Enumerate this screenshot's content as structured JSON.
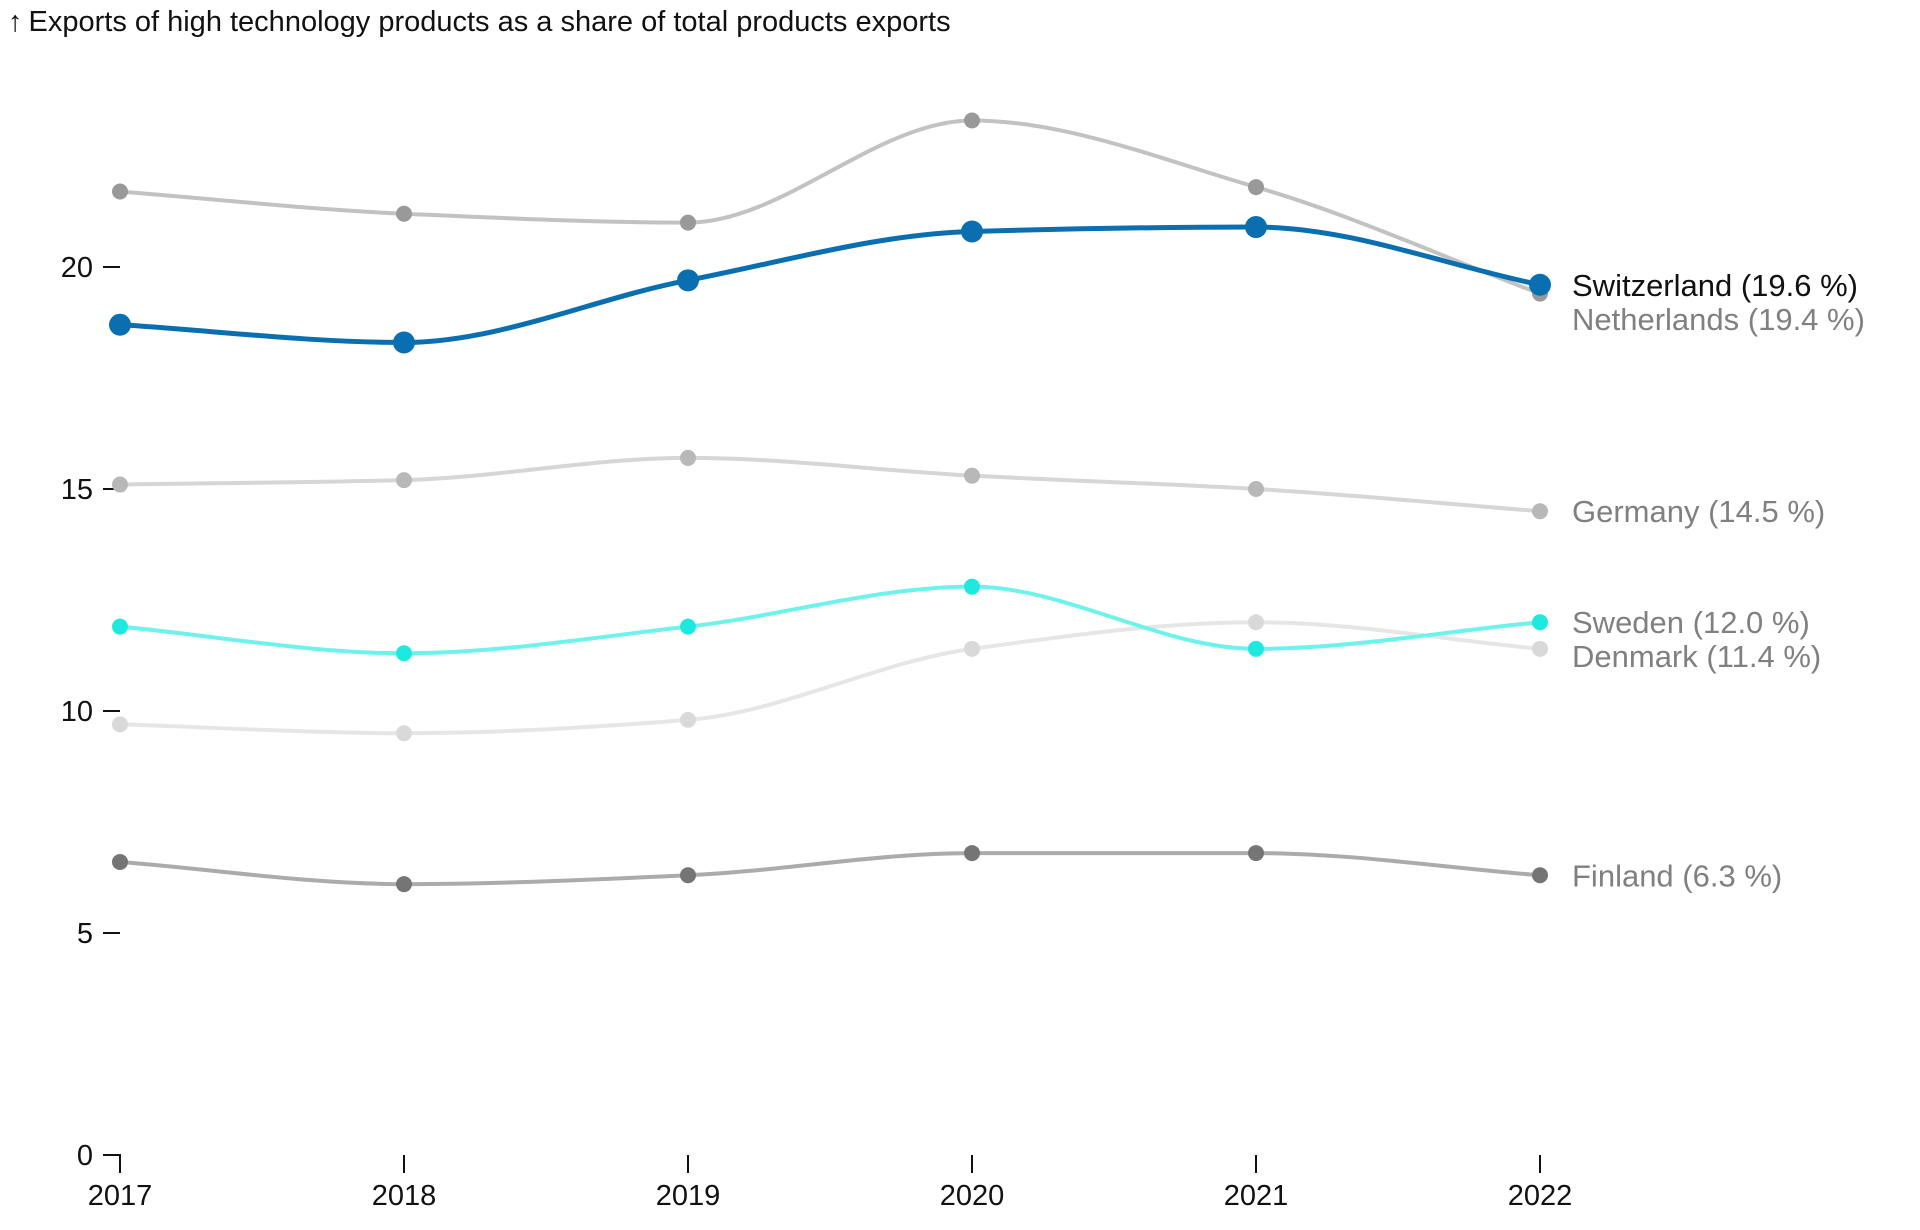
{
  "chart_data": {
    "type": "line",
    "title": "Exports of high technology products as a share of total products exports",
    "title_arrow": "↑",
    "xlabel": "",
    "ylabel": "",
    "x": [
      2017,
      2018,
      2019,
      2020,
      2021,
      2022
    ],
    "x_tick_labels": [
      "2017",
      "2018",
      "2019",
      "2020",
      "2021",
      "2022"
    ],
    "y_ticks": [
      0,
      5,
      10,
      15,
      20
    ],
    "y_tick_labels": [
      "0",
      "5",
      "10",
      "15",
      "20"
    ],
    "ylim": [
      0,
      25
    ],
    "grid": false,
    "legend": "direct labels at line ends",
    "series": [
      {
        "name": "Denmark",
        "end_label": "Denmark (11.4 %)",
        "values": [
          9.7,
          9.5,
          9.8,
          11.4,
          12.0,
          11.4
        ],
        "line_color": "#e6e6e6",
        "point_color": "#d9d9d9",
        "label_color": "#808080",
        "highlight": false
      },
      {
        "name": "Finland",
        "end_label": "Finland (6.3 %)",
        "values": [
          6.6,
          6.1,
          6.3,
          6.8,
          6.8,
          6.3
        ],
        "line_color": "#ababab",
        "point_color": "#757575",
        "label_color": "#808080",
        "highlight": false
      },
      {
        "name": "Germany",
        "end_label": "Germany (14.5 %)",
        "values": [
          15.1,
          15.2,
          15.7,
          15.3,
          15.0,
          14.5
        ],
        "line_color": "#d6d6d6",
        "point_color": "#b8b8b8",
        "label_color": "#808080",
        "highlight": false
      },
      {
        "name": "Netherlands",
        "end_label": "Netherlands (19.4 %)",
        "values": [
          21.7,
          21.2,
          21.0,
          23.3,
          21.8,
          19.4
        ],
        "line_color": "#c2c2c2",
        "point_color": "#999999",
        "label_color": "#808080",
        "highlight": false
      },
      {
        "name": "Sweden",
        "end_label": "Sweden (12.0 %)",
        "values": [
          11.9,
          11.3,
          11.9,
          12.8,
          11.4,
          12.0
        ],
        "line_color": "#6ef2ec",
        "point_color": "#1de9df",
        "label_color": "#808080",
        "highlight": false
      },
      {
        "name": "Switzerland",
        "end_label": "Switzerland (19.6 %)",
        "values": [
          18.7,
          18.3,
          19.7,
          20.8,
          20.9,
          19.6
        ],
        "line_color": "#0a6fb0",
        "point_color": "#0a6fb0",
        "label_color": "#111111",
        "highlight": true
      }
    ]
  }
}
